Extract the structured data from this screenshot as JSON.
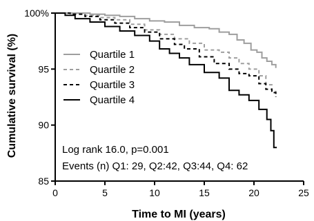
{
  "chart_data": {
    "type": "line",
    "xlabel": "Time to MI (years)",
    "ylabel": "Cumulative survival (%)",
    "xlim": [
      0,
      25
    ],
    "ylim": [
      85,
      100
    ],
    "x_ticks": [
      "0",
      "5",
      "10",
      "15",
      "20",
      "25"
    ],
    "y_ticks": [
      "85",
      "90",
      "95",
      "100%"
    ],
    "grid": false,
    "legend_position": "top-left",
    "annotations": {
      "line1": "Log rank 16.0, p=0.001",
      "line2": "Events (n) Q1: 29, Q2:42, Q3:44, Q4: 62"
    },
    "series": [
      {
        "name": "Quartile 1",
        "color": "#9e9e9e",
        "dash": "solid",
        "points": [
          [
            0,
            100
          ],
          [
            2.5,
            100
          ],
          [
            3.5,
            99.9
          ],
          [
            5,
            99.8
          ],
          [
            6.5,
            99.7
          ],
          [
            8,
            99.5
          ],
          [
            9.5,
            99.3
          ],
          [
            11,
            99.2
          ],
          [
            12.5,
            98.9
          ],
          [
            14,
            98.7
          ],
          [
            15.5,
            98.6
          ],
          [
            16.5,
            98.3
          ],
          [
            17.5,
            98.1
          ],
          [
            18.3,
            97.6
          ],
          [
            19,
            97.3
          ],
          [
            19.7,
            96.7
          ],
          [
            20.3,
            96.5
          ],
          [
            20.8,
            96.0
          ],
          [
            21.3,
            95.7
          ],
          [
            21.8,
            95.4
          ],
          [
            22.2,
            95.1
          ]
        ]
      },
      {
        "name": "Quartile 2",
        "color": "#9e9e9e",
        "dash": "dashed",
        "points": [
          [
            0,
            100
          ],
          [
            1.5,
            100
          ],
          [
            3,
            99.8
          ],
          [
            4.5,
            99.6
          ],
          [
            6,
            99.4
          ],
          [
            7.5,
            99.0
          ],
          [
            9,
            98.5
          ],
          [
            10.5,
            98.1
          ],
          [
            12,
            97.7
          ],
          [
            13.5,
            97.3
          ],
          [
            15,
            96.7
          ],
          [
            16.5,
            96.5
          ],
          [
            17.5,
            96.0
          ],
          [
            18.5,
            95.5
          ],
          [
            19.5,
            95.0
          ],
          [
            20.5,
            94.4
          ],
          [
            21.2,
            93.6
          ],
          [
            21.8,
            93.0
          ],
          [
            22.2,
            92.8
          ]
        ]
      },
      {
        "name": "Quartile 3",
        "color": "#000000",
        "dash": "dashed",
        "points": [
          [
            0,
            100
          ],
          [
            1.5,
            99.9
          ],
          [
            3,
            99.7
          ],
          [
            4.5,
            99.4
          ],
          [
            6,
            99.1
          ],
          [
            7.5,
            98.7
          ],
          [
            9,
            98.3
          ],
          [
            10.5,
            97.7
          ],
          [
            12,
            97.2
          ],
          [
            13,
            96.8
          ],
          [
            14.5,
            96.1
          ],
          [
            16,
            95.5
          ],
          [
            17.5,
            95.0
          ],
          [
            18.5,
            94.6
          ],
          [
            19.5,
            94.4
          ],
          [
            20.5,
            93.7
          ],
          [
            21.2,
            93.2
          ],
          [
            21.8,
            92.9
          ],
          [
            22.2,
            92.5
          ]
        ]
      },
      {
        "name": "Quartile 4",
        "color": "#000000",
        "dash": "solid",
        "points": [
          [
            0,
            100
          ],
          [
            1,
            99.8
          ],
          [
            2,
            99.5
          ],
          [
            3.5,
            99.2
          ],
          [
            5,
            98.8
          ],
          [
            6.5,
            98.4
          ],
          [
            8,
            98.0
          ],
          [
            9.5,
            97.5
          ],
          [
            10.5,
            96.8
          ],
          [
            11.5,
            96.4
          ],
          [
            12.5,
            96.0
          ],
          [
            13.5,
            95.4
          ],
          [
            15,
            94.7
          ],
          [
            16.5,
            94.2
          ],
          [
            17.5,
            93.1
          ],
          [
            18.5,
            92.7
          ],
          [
            19.5,
            92.2
          ],
          [
            20.5,
            91.4
          ],
          [
            21.3,
            90.5
          ],
          [
            21.7,
            89.5
          ],
          [
            22,
            88.0
          ],
          [
            22.3,
            88.0
          ]
        ]
      }
    ]
  }
}
